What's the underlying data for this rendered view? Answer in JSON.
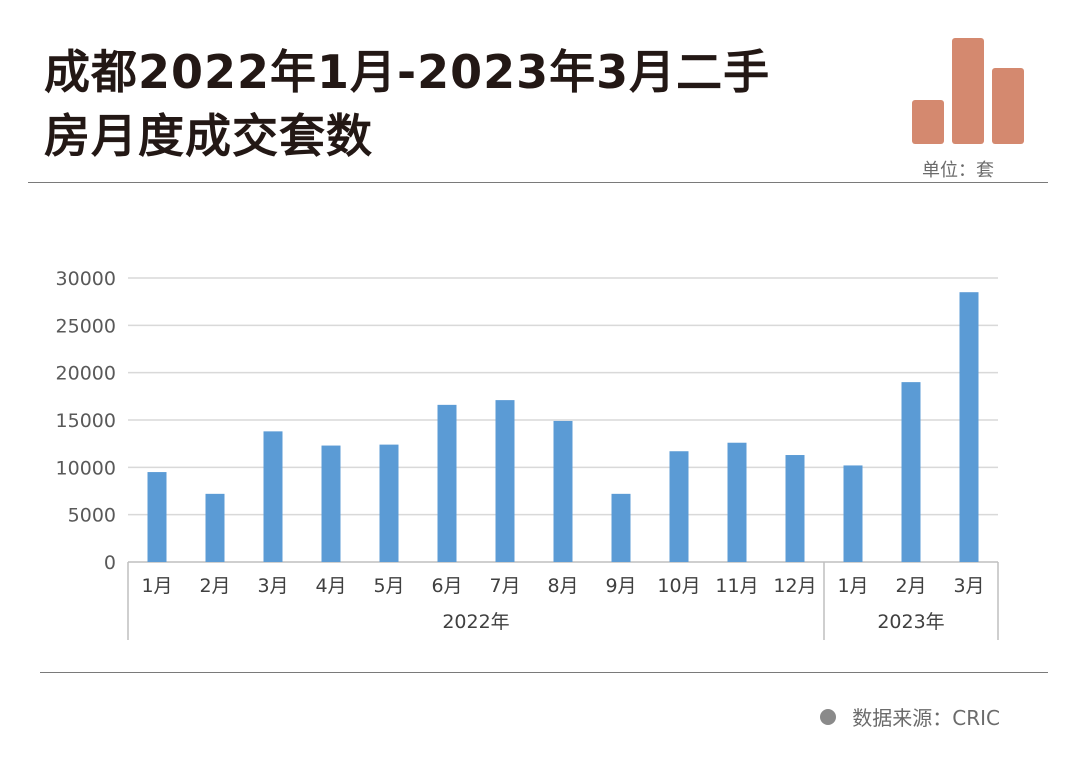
{
  "header": {
    "title_line1": "成都2022年1月-2023年3月二手",
    "title_line2": "房月度成交套数",
    "unit": "单位：套"
  },
  "footer": {
    "source": "数据来源：CRIC"
  },
  "colors": {
    "bar": "#5b9bd5",
    "logo": "#d4896f",
    "grid": "#d9d9d9"
  },
  "chart_data": {
    "type": "bar",
    "categories": [
      "1月",
      "2月",
      "3月",
      "4月",
      "5月",
      "6月",
      "7月",
      "8月",
      "9月",
      "10月",
      "11月",
      "12月",
      "1月",
      "2月",
      "3月"
    ],
    "groups": [
      {
        "label": "2022年",
        "count": 12
      },
      {
        "label": "2023年",
        "count": 3
      }
    ],
    "series": [
      {
        "values": [
          9500,
          7200,
          13800,
          12300,
          12400,
          16600,
          17100,
          14900,
          7200,
          11700,
          12600,
          11300,
          10200,
          19000,
          28500
        ]
      }
    ],
    "yticks": [
      0,
      5000,
      10000,
      15000,
      20000,
      25000,
      30000
    ],
    "ylim": [
      0,
      30000
    ],
    "grid": true,
    "legend": false
  }
}
